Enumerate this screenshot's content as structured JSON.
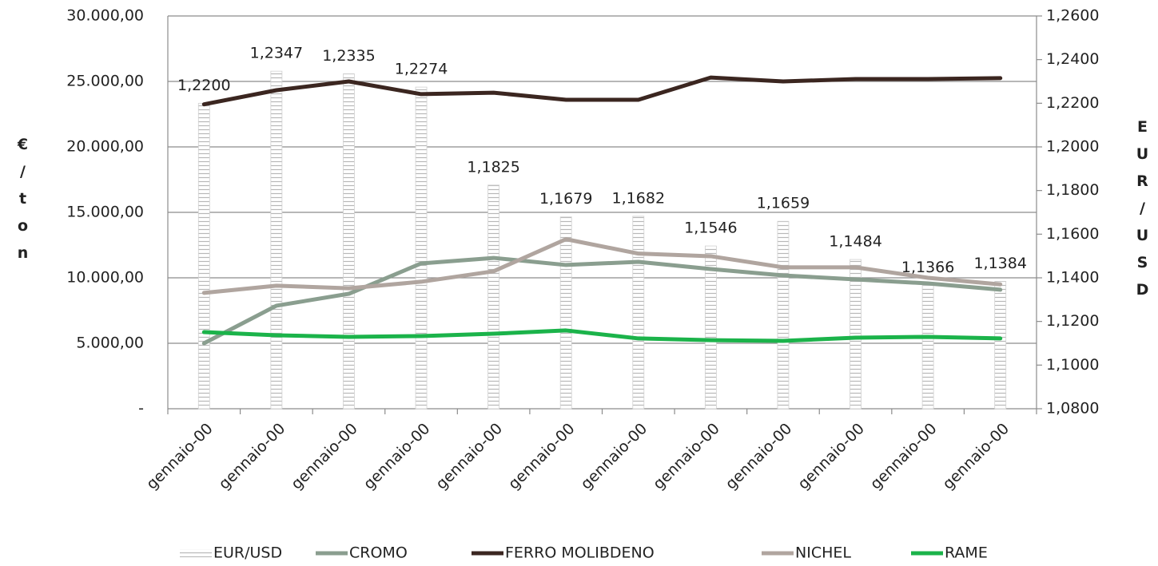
{
  "chart_data": {
    "type": "combo",
    "y_label": "€/ton",
    "y2_label": "EUR/USD",
    "categories": [
      "gennaio-00",
      "gennaio-00",
      "gennaio-00",
      "gennaio-00",
      "gennaio-00",
      "gennaio-00",
      "gennaio-00",
      "gennaio-00",
      "gennaio-00",
      "gennaio-00",
      "gennaio-00",
      "gennaio-00"
    ],
    "ylim": [
      0,
      30000
    ],
    "yticks": [
      {
        "value": 0,
        "label": "-"
      },
      {
        "value": 5000,
        "label": "5.000,00"
      },
      {
        "value": 10000,
        "label": "10.000,00"
      },
      {
        "value": 15000,
        "label": "15.000,00"
      },
      {
        "value": 20000,
        "label": "20.000,00"
      },
      {
        "value": 25000,
        "label": "25.000,00"
      },
      {
        "value": 30000,
        "label": "30.000,00"
      }
    ],
    "y2lim": [
      1.08,
      1.26
    ],
    "y2ticks": [
      {
        "value": 1.08,
        "label": "1,0800"
      },
      {
        "value": 1.1,
        "label": "1,1000"
      },
      {
        "value": 1.12,
        "label": "1,1200"
      },
      {
        "value": 1.14,
        "label": "1,1400"
      },
      {
        "value": 1.16,
        "label": "1,1600"
      },
      {
        "value": 1.18,
        "label": "1,1800"
      },
      {
        "value": 1.2,
        "label": "1,2000"
      },
      {
        "value": 1.22,
        "label": "1,2200"
      },
      {
        "value": 1.24,
        "label": "1,2400"
      },
      {
        "value": 1.26,
        "label": "1,2600"
      }
    ],
    "grid": true,
    "legend": "bottom",
    "series": [
      {
        "name": "EUR/USD",
        "type": "bar",
        "axis": "y2",
        "color": "#b8b8b8",
        "values": [
          1.22,
          1.2347,
          1.2335,
          1.2274,
          1.1825,
          1.1679,
          1.1682,
          1.1546,
          1.1659,
          1.1484,
          1.1366,
          1.1384
        ],
        "value_labels": [
          "1,2200",
          "1,2347",
          "1,2335",
          "1,2274",
          "1,1825",
          "1,1679",
          "1,1682",
          "1,1546",
          "1,1659",
          "1,1484",
          "1,1366",
          "1,1384"
        ]
      },
      {
        "name": "CROMO",
        "type": "line",
        "color": "#8a9e8f",
        "values": [
          5000,
          7870,
          8780,
          11100,
          11520,
          10980,
          11220,
          10670,
          10180,
          9880,
          9570,
          9090
        ]
      },
      {
        "name": "FERRO MOLIBDENO",
        "type": "line",
        "color": "#3b2620",
        "values": [
          23250,
          24330,
          25000,
          24030,
          24140,
          23600,
          23600,
          25300,
          25000,
          25180,
          25180,
          25250
        ]
      },
      {
        "name": "NICHEL",
        "type": "line",
        "color": "#b0a59f",
        "values": [
          8850,
          9400,
          9200,
          9700,
          10500,
          12950,
          11850,
          11650,
          10800,
          10800,
          10000,
          9500
        ]
      },
      {
        "name": "RAME",
        "type": "line",
        "color": "#1bb34a",
        "values": [
          5850,
          5610,
          5490,
          5550,
          5730,
          5980,
          5370,
          5240,
          5180,
          5430,
          5490,
          5370
        ]
      }
    ]
  }
}
